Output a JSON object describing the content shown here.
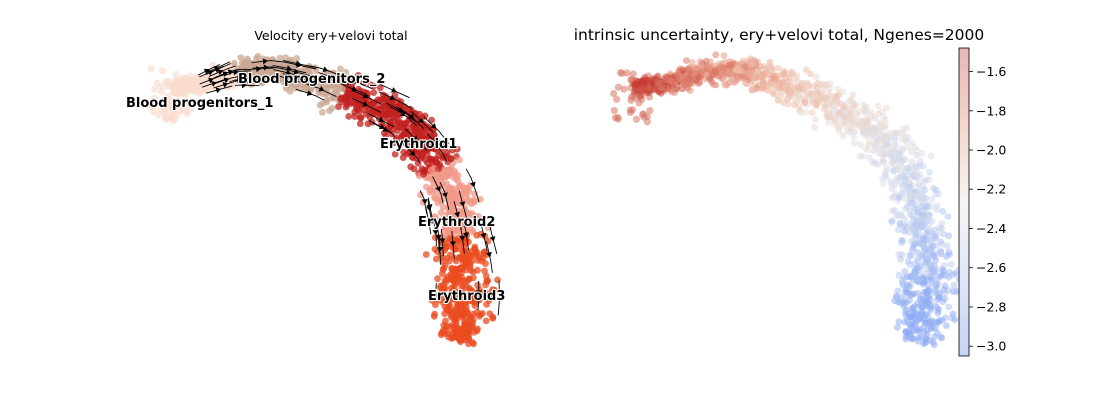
{
  "chart_data": [
    {
      "type": "scatter",
      "title": "Velocity ery+velovi total",
      "xlabel": "",
      "ylabel": "",
      "grid": false,
      "axes": "off",
      "overlay": "velocity streamlines (arrows point down the trajectory)",
      "clusters": [
        {
          "name": "Blood progenitors_1",
          "label": "Blood progenitors_1",
          "color": "#f9dcce"
        },
        {
          "name": "Blood progenitors_2",
          "label": "Blood progenitors_2",
          "color": "#c9a894"
        },
        {
          "name": "Erythroid1",
          "label": "Erythroid1",
          "color": "#c1221f"
        },
        {
          "name": "Erythroid2",
          "label": "Erythroid2",
          "color": "#f1998a"
        },
        {
          "name": "Erythroid3",
          "label": "Erythroid3",
          "color": "#ea4c20"
        }
      ]
    },
    {
      "type": "scatter",
      "title": "intrinsic uncertainty, ery+velovi total, Ngenes=2000",
      "xlabel": "",
      "ylabel": "",
      "grid": false,
      "axes": "off",
      "colormap": "coolwarm",
      "colorbar": {
        "ticks": [
          "−1.6",
          "−1.8",
          "−2.0",
          "−2.2",
          "−2.4",
          "−2.6",
          "−2.8",
          "−3.0"
        ],
        "tick_values": [
          -1.6,
          -1.8,
          -2.0,
          -2.2,
          -2.4,
          -2.6,
          -2.8,
          -3.0
        ],
        "range": [
          -3.05,
          -1.48
        ]
      },
      "trend": "high uncertainty (red) at blood progenitors, decreasing to low (blue) at Erythroid3"
    }
  ]
}
